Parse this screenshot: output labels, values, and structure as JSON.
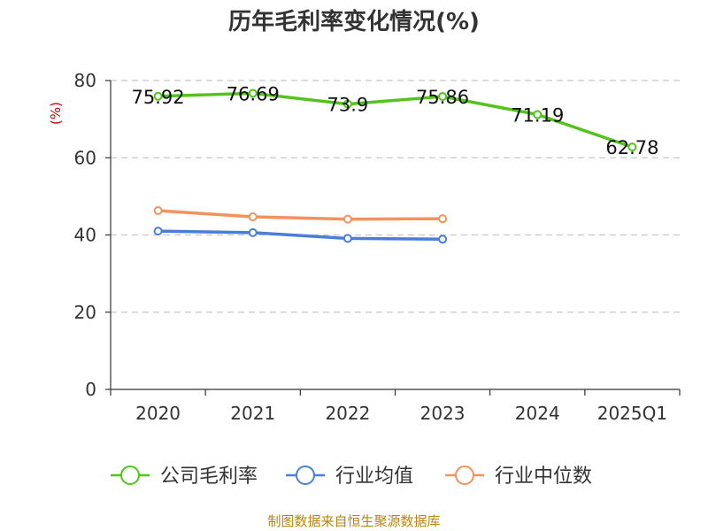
{
  "chart_data": {
    "type": "line",
    "title": "历年毛利率变化情况(%)",
    "ylabel": "(%)",
    "categories": [
      "2020",
      "2021",
      "2022",
      "2023",
      "2024",
      "2025Q1"
    ],
    "ylim": [
      0,
      80
    ],
    "yticks": [
      0,
      20,
      40,
      60,
      80
    ],
    "grid": true,
    "legend_position": "bottom",
    "series": [
      {
        "name": "公司毛利率",
        "color": "#52c41a",
        "values": [
          75.92,
          76.69,
          73.9,
          75.86,
          71.19,
          62.78
        ],
        "labels": [
          "75.92",
          "76.69",
          "73.9",
          "75.86",
          "71.19",
          "62.78"
        ]
      },
      {
        "name": "行业均值",
        "color": "#4a7fd9",
        "values": [
          41.0,
          40.6,
          39.1,
          38.9,
          null,
          null
        ]
      },
      {
        "name": "行业中位数",
        "color": "#f4925e",
        "values": [
          46.3,
          44.7,
          44.1,
          44.2,
          null,
          null
        ]
      }
    ]
  },
  "source": "制图数据来自恒生聚源数据库"
}
